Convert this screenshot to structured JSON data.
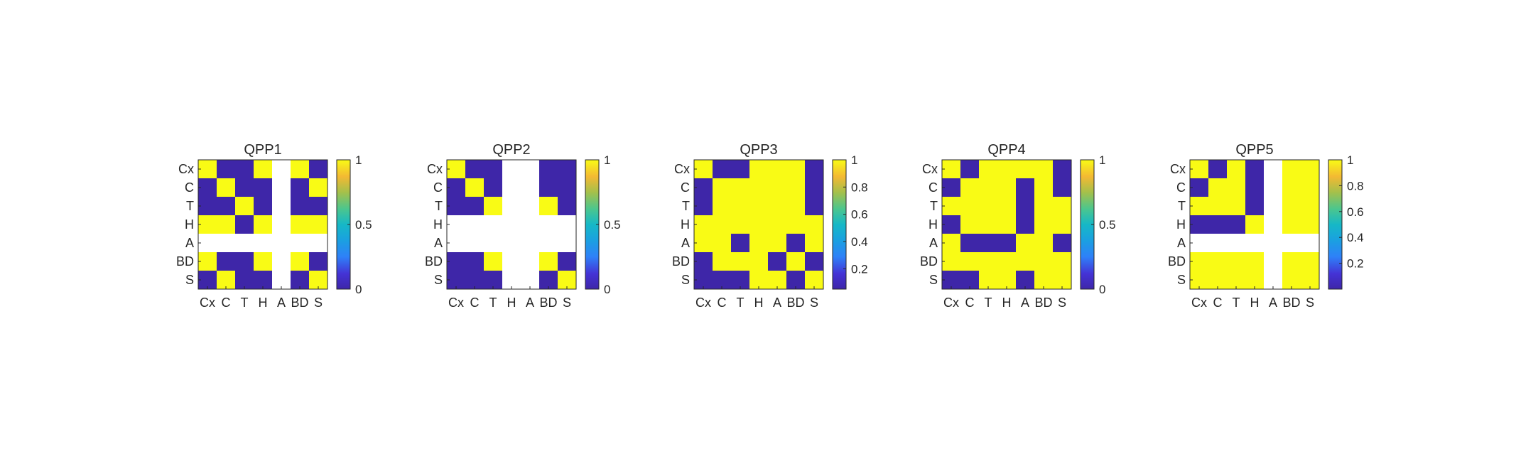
{
  "colors": {
    "low": "#3e26a8",
    "high": "#f9fb15",
    "missing": "#ffffff",
    "axis": "#262626"
  },
  "chart_data": [
    {
      "type": "heatmap",
      "title": "QPP1",
      "categories": [
        "Cx",
        "C",
        "T",
        "H",
        "A",
        "BD",
        "S"
      ],
      "matrix": [
        [
          1,
          0,
          0,
          1,
          null,
          1,
          0
        ],
        [
          0,
          1,
          0,
          0,
          null,
          0,
          1
        ],
        [
          0,
          0,
          1,
          0,
          null,
          0,
          0
        ],
        [
          1,
          1,
          0,
          1,
          null,
          1,
          1
        ],
        [
          null,
          null,
          null,
          null,
          null,
          null,
          null
        ],
        [
          1,
          0,
          0,
          1,
          null,
          1,
          0
        ],
        [
          0,
          1,
          0,
          0,
          null,
          0,
          1
        ]
      ],
      "clim": [
        0,
        1
      ],
      "colorbar_ticks": [
        "0",
        "0.5",
        "1"
      ],
      "colorbar_tick_values": [
        0,
        0.5,
        1
      ]
    },
    {
      "type": "heatmap",
      "title": "QPP2",
      "categories": [
        "Cx",
        "C",
        "T",
        "H",
        "A",
        "BD",
        "S"
      ],
      "matrix": [
        [
          1,
          0,
          0,
          null,
          null,
          0,
          0
        ],
        [
          0,
          1,
          0,
          null,
          null,
          0,
          0
        ],
        [
          0,
          0,
          1,
          null,
          null,
          1,
          0
        ],
        [
          null,
          null,
          null,
          null,
          null,
          null,
          null
        ],
        [
          null,
          null,
          null,
          null,
          null,
          null,
          null
        ],
        [
          0,
          0,
          1,
          null,
          null,
          1,
          0
        ],
        [
          0,
          0,
          0,
          null,
          null,
          0,
          1
        ]
      ],
      "clim": [
        0,
        1
      ],
      "colorbar_ticks": [
        "0",
        "0.5",
        "1"
      ],
      "colorbar_tick_values": [
        0,
        0.5,
        1
      ]
    },
    {
      "type": "heatmap",
      "title": "QPP3",
      "categories": [
        "Cx",
        "C",
        "T",
        "H",
        "A",
        "BD",
        "S"
      ],
      "matrix": [
        [
          1,
          0,
          0,
          1,
          1,
          1,
          0
        ],
        [
          0,
          1,
          1,
          1,
          1,
          1,
          0
        ],
        [
          0,
          1,
          1,
          1,
          1,
          1,
          0
        ],
        [
          1,
          1,
          1,
          1,
          1,
          1,
          1
        ],
        [
          1,
          1,
          0,
          1,
          1,
          0,
          1
        ],
        [
          0,
          1,
          1,
          1,
          0,
          1,
          0
        ],
        [
          0,
          0,
          0,
          1,
          1,
          0,
          1
        ]
      ],
      "clim": [
        0.05,
        1
      ],
      "colorbar_ticks": [
        "0.2",
        "0.4",
        "0.6",
        "0.8",
        "1"
      ],
      "colorbar_tick_values": [
        0.2,
        0.4,
        0.6,
        0.8,
        1
      ]
    },
    {
      "type": "heatmap",
      "title": "QPP4",
      "categories": [
        "Cx",
        "C",
        "T",
        "H",
        "A",
        "BD",
        "S"
      ],
      "matrix": [
        [
          1,
          0,
          1,
          1,
          1,
          1,
          0
        ],
        [
          0,
          1,
          1,
          1,
          0,
          1,
          0
        ],
        [
          1,
          1,
          1,
          1,
          0,
          1,
          1
        ],
        [
          0,
          1,
          1,
          1,
          0,
          1,
          1
        ],
        [
          1,
          0,
          0,
          0,
          1,
          1,
          0
        ],
        [
          1,
          1,
          1,
          1,
          1,
          1,
          1
        ],
        [
          0,
          0,
          1,
          1,
          0,
          1,
          1
        ]
      ],
      "clim": [
        0,
        1
      ],
      "colorbar_ticks": [
        "0",
        "0.5",
        "1"
      ],
      "colorbar_tick_values": [
        0,
        0.5,
        1
      ]
    },
    {
      "type": "heatmap",
      "title": "QPP5",
      "categories": [
        "Cx",
        "C",
        "T",
        "H",
        "A",
        "BD",
        "S"
      ],
      "matrix": [
        [
          1,
          0,
          1,
          0,
          null,
          1,
          1
        ],
        [
          0,
          1,
          1,
          0,
          null,
          1,
          1
        ],
        [
          1,
          1,
          1,
          0,
          null,
          1,
          1
        ],
        [
          0,
          0,
          0,
          1,
          null,
          1,
          1
        ],
        [
          null,
          null,
          null,
          null,
          null,
          null,
          null
        ],
        [
          1,
          1,
          1,
          1,
          null,
          1,
          1
        ],
        [
          1,
          1,
          1,
          1,
          null,
          1,
          1
        ]
      ],
      "clim": [
        0,
        1
      ],
      "colorbar_ticks": [
        "0.2",
        "0.4",
        "0.6",
        "0.8",
        "1"
      ],
      "colorbar_tick_values": [
        0.2,
        0.4,
        0.6,
        0.8,
        1
      ]
    }
  ]
}
